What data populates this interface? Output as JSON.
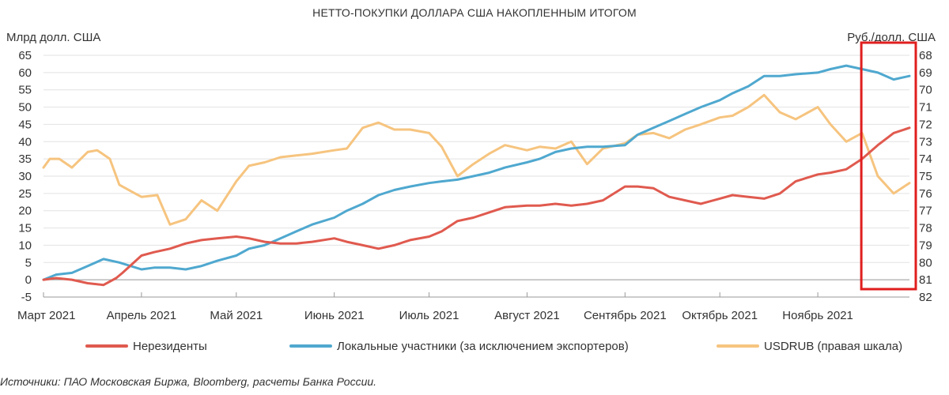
{
  "chart_data": {
    "type": "line",
    "title": "НЕТТО-ПОКУПКИ ДОЛЛАРА США НАКОПЛЕННЫМ ИТОГОМ",
    "ylabel_left": "Млрд долл. США",
    "ylabel_right": "Руб./долл. США",
    "source": "Источники: ПАО Московская Биржа, Bloomberg, расчеты Банка России.",
    "x_range": [
      "2021-03-01",
      "2021-11-30"
    ],
    "x_tick_labels": [
      "Март 2021",
      "Апрель 2021",
      "Май 2021",
      "Июнь 2021",
      "Июль 2021",
      "Август 2021",
      "Сентябрь 2021",
      "Октябрь 2021",
      "Ноябрь 2021"
    ],
    "ylim_left": [
      -5,
      65
    ],
    "yticks_left": [
      "65",
      "60",
      "55",
      "50",
      "45",
      "40",
      "35",
      "30",
      "25",
      "20",
      "15",
      "10",
      "5",
      "0",
      "-5"
    ],
    "ylim_right_inverted": [
      82,
      68
    ],
    "yticks_right": [
      "68",
      "69",
      "70",
      "71",
      "72",
      "73",
      "74",
      "75",
      "76",
      "77",
      "78",
      "79",
      "80",
      "81",
      "82"
    ],
    "grid": "horizontal",
    "legend_position": "bottom",
    "highlight_box": {
      "x_start": "2021-11-01",
      "x_end": "2021-11-30",
      "color": "#e01e1e"
    },
    "series": [
      {
        "name": "Нерезиденты",
        "axis": "left",
        "color": "#e05a4f",
        "x": [
          "2021-03-01",
          "2021-03-05",
          "2021-03-10",
          "2021-03-15",
          "2021-03-20",
          "2021-03-24",
          "2021-03-26",
          "2021-04-01",
          "2021-04-05",
          "2021-04-10",
          "2021-04-15",
          "2021-04-20",
          "2021-04-25",
          "2021-05-01",
          "2021-05-05",
          "2021-05-10",
          "2021-05-15",
          "2021-05-20",
          "2021-05-25",
          "2021-06-01",
          "2021-06-05",
          "2021-06-10",
          "2021-06-15",
          "2021-06-20",
          "2021-06-25",
          "2021-07-01",
          "2021-07-05",
          "2021-07-10",
          "2021-07-15",
          "2021-07-20",
          "2021-07-25",
          "2021-08-01",
          "2021-08-05",
          "2021-08-10",
          "2021-08-15",
          "2021-08-20",
          "2021-08-25",
          "2021-09-01",
          "2021-09-05",
          "2021-09-10",
          "2021-09-15",
          "2021-09-20",
          "2021-09-25",
          "2021-10-01",
          "2021-10-05",
          "2021-10-10",
          "2021-10-15",
          "2021-10-20",
          "2021-10-25",
          "2021-11-01",
          "2021-11-05",
          "2021-11-10",
          "2021-11-15",
          "2021-11-20",
          "2021-11-25",
          "2021-11-30"
        ],
        "values": [
          0,
          0.5,
          0,
          -1,
          -1.5,
          0.5,
          2,
          7,
          8,
          9,
          10.5,
          11.5,
          12,
          12.5,
          12,
          11,
          10.5,
          10.5,
          11,
          12,
          11,
          10,
          9,
          10,
          11.5,
          12.5,
          14,
          17,
          18,
          19.5,
          21,
          21.5,
          21.5,
          22,
          21.5,
          22,
          23,
          27,
          27,
          26.5,
          24,
          23,
          22,
          23.5,
          24.5,
          24,
          23.5,
          25,
          28.5,
          30.5,
          31,
          32,
          35,
          39,
          42.5,
          44
        ]
      },
      {
        "name": "Локальные участники (за исключением экспортеров)",
        "axis": "left",
        "color": "#4fa8cf",
        "x": [
          "2021-03-01",
          "2021-03-05",
          "2021-03-10",
          "2021-03-15",
          "2021-03-20",
          "2021-03-25",
          "2021-04-01",
          "2021-04-05",
          "2021-04-10",
          "2021-04-15",
          "2021-04-20",
          "2021-04-25",
          "2021-05-01",
          "2021-05-05",
          "2021-05-10",
          "2021-05-15",
          "2021-05-20",
          "2021-05-25",
          "2021-06-01",
          "2021-06-05",
          "2021-06-10",
          "2021-06-15",
          "2021-06-20",
          "2021-06-25",
          "2021-07-01",
          "2021-07-05",
          "2021-07-10",
          "2021-07-15",
          "2021-07-20",
          "2021-07-25",
          "2021-08-01",
          "2021-08-05",
          "2021-08-10",
          "2021-08-15",
          "2021-08-20",
          "2021-08-25",
          "2021-09-01",
          "2021-09-05",
          "2021-09-10",
          "2021-09-15",
          "2021-09-20",
          "2021-09-25",
          "2021-10-01",
          "2021-10-05",
          "2021-10-10",
          "2021-10-15",
          "2021-10-20",
          "2021-10-25",
          "2021-11-01",
          "2021-11-05",
          "2021-11-10",
          "2021-11-15",
          "2021-11-20",
          "2021-11-25",
          "2021-11-30"
        ],
        "values": [
          0,
          1.5,
          2,
          4,
          6,
          5,
          3,
          3.5,
          3.5,
          3,
          4,
          5.5,
          7,
          9,
          10,
          12,
          14,
          16,
          18,
          20,
          22,
          24.5,
          26,
          27,
          28,
          28.5,
          29,
          30,
          31,
          32.5,
          34,
          35,
          37,
          38,
          38.5,
          38.5,
          39,
          42,
          44,
          46,
          48,
          50,
          52,
          54,
          56,
          59,
          59,
          59.5,
          60,
          61,
          62,
          61,
          60,
          58,
          59
        ]
      },
      {
        "name": "USDRUB (правая шкала)",
        "axis": "right",
        "color": "#f6c47f",
        "x": [
          "2021-03-01",
          "2021-03-03",
          "2021-03-06",
          "2021-03-10",
          "2021-03-15",
          "2021-03-18",
          "2021-03-22",
          "2021-03-25",
          "2021-03-30",
          "2021-04-01",
          "2021-04-06",
          "2021-04-10",
          "2021-04-15",
          "2021-04-20",
          "2021-04-25",
          "2021-05-01",
          "2021-05-05",
          "2021-05-10",
          "2021-05-15",
          "2021-05-20",
          "2021-05-25",
          "2021-06-01",
          "2021-06-05",
          "2021-06-10",
          "2021-06-15",
          "2021-06-20",
          "2021-06-25",
          "2021-07-01",
          "2021-07-05",
          "2021-07-10",
          "2021-07-15",
          "2021-07-20",
          "2021-07-25",
          "2021-08-01",
          "2021-08-05",
          "2021-08-10",
          "2021-08-15",
          "2021-08-20",
          "2021-08-25",
          "2021-09-01",
          "2021-09-05",
          "2021-09-10",
          "2021-09-15",
          "2021-09-20",
          "2021-09-25",
          "2021-10-01",
          "2021-10-05",
          "2021-10-10",
          "2021-10-15",
          "2021-10-20",
          "2021-10-25",
          "2021-11-01",
          "2021-11-05",
          "2021-11-10",
          "2021-11-15",
          "2021-11-20",
          "2021-11-25",
          "2021-11-30"
        ],
        "values": [
          74.5,
          74.0,
          74.0,
          74.5,
          73.6,
          73.5,
          74.0,
          75.5,
          76.0,
          76.2,
          76.1,
          77.8,
          77.5,
          76.4,
          77.0,
          75.3,
          74.4,
          74.2,
          73.9,
          73.8,
          73.7,
          73.5,
          73.4,
          72.2,
          71.9,
          72.3,
          72.3,
          72.5,
          73.3,
          75.0,
          74.3,
          73.7,
          73.2,
          73.5,
          73.3,
          73.4,
          73.0,
          74.3,
          73.4,
          73.1,
          72.6,
          72.5,
          72.8,
          72.3,
          72.0,
          71.6,
          71.5,
          71.0,
          70.3,
          71.3,
          71.7,
          71.0,
          72.0,
          73.0,
          72.5,
          75.0,
          76.0,
          75.4
        ]
      }
    ]
  }
}
